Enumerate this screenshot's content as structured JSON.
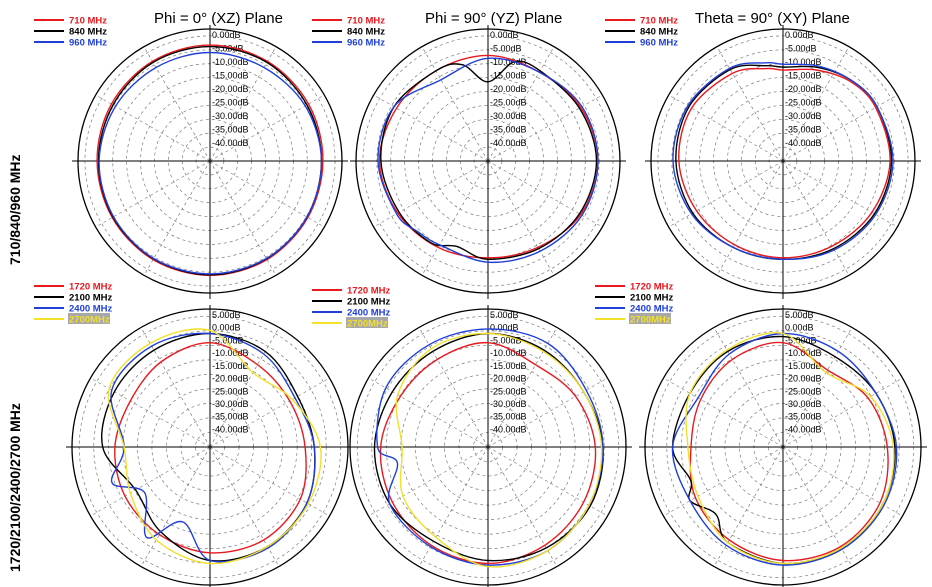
{
  "figure": {
    "column_titles": [
      "Phi = 0° (XZ)  Plane",
      "Phi = 90° (YZ)  Plane",
      "Theta = 90° (XY)  Plane"
    ],
    "row_labels": [
      "710/840/960  MHz",
      "1720/2100/2400/2700  MHz"
    ]
  },
  "ring_labels": [
    "0.00dB",
    "-5.00dB",
    "-10.00dB",
    "-15.00dB",
    "-20.00dB",
    "-25.00dB",
    "-30.00dB",
    "-35.00dB",
    "-40.00dB"
  ],
  "ring_labels_alt": [
    "5.00dB",
    "0.00dB",
    "-5.00dB",
    "-10.00dB",
    "-15.00dB",
    "-20.00dB",
    "-25.00dB",
    "-30.00dB",
    "-35.00dB",
    "-40.00dB"
  ],
  "colors": {
    "red": "#e8191f",
    "black": "#000000",
    "blue": "#1f3fd8",
    "yellow": "#f2e02a",
    "grid": "#7a7a7a"
  },
  "chart_data": [
    {
      "type": "polar",
      "plane": "Phi = 0° (XZ)  Plane",
      "radial_range_db": [
        -40,
        5
      ],
      "series": [
        {
          "name": "710 MHz",
          "color": "red",
          "angles_deg": [
            0,
            30,
            60,
            90,
            120,
            150,
            180,
            210,
            240,
            270,
            300,
            330
          ],
          "gain_db": [
            -0.5,
            -0.8,
            -1.2,
            -1.5,
            -1.5,
            -1.2,
            -1.0,
            -1.2,
            -1.5,
            -1.5,
            -1.2,
            -0.8
          ]
        },
        {
          "name": "840 MHz",
          "color": "black",
          "angles_deg": [
            0,
            30,
            60,
            90,
            120,
            150,
            180,
            210,
            240,
            270,
            300,
            330
          ],
          "gain_db": [
            -1.0,
            -1.2,
            -1.8,
            -2.0,
            -1.8,
            -1.5,
            -1.2,
            -1.5,
            -1.8,
            -2.0,
            -1.8,
            -1.2
          ]
        },
        {
          "name": "960 MHz",
          "color": "blue",
          "angles_deg": [
            0,
            30,
            60,
            90,
            120,
            150,
            180,
            210,
            240,
            270,
            300,
            330
          ],
          "gain_db": [
            -3.0,
            -3.2,
            -2.5,
            -2.0,
            -1.8,
            -1.6,
            -1.5,
            -1.6,
            -2.0,
            -2.2,
            -2.8,
            -3.2
          ]
        }
      ]
    },
    {
      "type": "polar",
      "plane": "Phi = 90° (YZ)  Plane",
      "radial_range_db": [
        -40,
        5
      ],
      "series": [
        {
          "name": "710 MHz",
          "color": "red",
          "angles_deg": [
            0,
            30,
            60,
            90,
            120,
            150,
            180,
            210,
            240,
            270,
            300,
            330
          ],
          "gain_db": [
            -4.0,
            -5.0,
            -3.5,
            -2.5,
            -3.5,
            -6.0,
            -7.0,
            -6.0,
            -4.5,
            -3.0,
            -4.0,
            -4.5
          ]
        },
        {
          "name": "840 MHz",
          "color": "black",
          "angles_deg": [
            0,
            15,
            30,
            60,
            90,
            120,
            150,
            180,
            200,
            215,
            240,
            270,
            300,
            330,
            345
          ],
          "gain_db": [
            -13.0,
            -5.0,
            -4.5,
            -4.0,
            -3.0,
            -4.0,
            -5.5,
            -6.5,
            -9.0,
            -6.0,
            -5.0,
            -3.5,
            -3.0,
            -4.5,
            -6.0
          ]
        },
        {
          "name": "960 MHz",
          "color": "blue",
          "angles_deg": [
            0,
            30,
            60,
            90,
            120,
            150,
            180,
            210,
            225,
            240,
            270,
            300,
            330
          ],
          "gain_db": [
            -5.0,
            -5.0,
            -3.0,
            -2.5,
            -3.0,
            -4.5,
            -5.5,
            -7.0,
            -6.0,
            -4.0,
            -2.5,
            -3.0,
            -8.0
          ]
        }
      ]
    },
    {
      "type": "polar",
      "plane": "Theta = 90° (XY)  Plane",
      "radial_range_db": [
        -40,
        5
      ],
      "series": [
        {
          "name": "710 MHz",
          "color": "red",
          "angles_deg": [
            0,
            20,
            40,
            60,
            90,
            120,
            150,
            180,
            210,
            240,
            270,
            300,
            330,
            350
          ],
          "gain_db": [
            -9.0,
            -7.0,
            -4.5,
            -3.5,
            -3.5,
            -5.0,
            -6.5,
            -7.0,
            -7.0,
            -6.0,
            -4.5,
            -4.0,
            -5.5,
            -8.0
          ]
        },
        {
          "name": "840 MHz",
          "color": "black",
          "angles_deg": [
            0,
            20,
            40,
            60,
            90,
            120,
            150,
            180,
            210,
            240,
            270,
            300,
            330,
            350
          ],
          "gain_db": [
            -8.0,
            -6.0,
            -4.0,
            -3.0,
            -3.0,
            -4.0,
            -5.5,
            -6.5,
            -6.0,
            -4.5,
            -3.5,
            -3.0,
            -4.0,
            -7.0
          ]
        },
        {
          "name": "960 MHz",
          "color": "blue",
          "angles_deg": [
            0,
            20,
            40,
            60,
            90,
            120,
            150,
            180,
            210,
            240,
            270,
            300,
            330,
            350
          ],
          "gain_db": [
            -7.0,
            -5.5,
            -4.0,
            -3.0,
            -2.5,
            -3.5,
            -5.0,
            -6.5,
            -6.0,
            -4.0,
            -2.5,
            -2.5,
            -3.5,
            -6.0
          ]
        }
      ]
    },
    {
      "type": "polar",
      "plane": "Phi = 0° (XZ)  Plane",
      "radial_range_db": [
        -40,
        5
      ],
      "series": [
        {
          "name": "1720 MHz",
          "color": "red",
          "angles_deg": [
            0,
            30,
            60,
            90,
            120,
            150,
            180,
            210,
            240,
            270,
            300,
            330
          ],
          "gain_db": [
            -6.0,
            -9.0,
            -10.0,
            -9.0,
            -6.0,
            -5.0,
            -5.5,
            -7.0,
            -8.0,
            -9.0,
            -10.0,
            -8.0
          ]
        },
        {
          "name": "2100 MHz",
          "color": "black",
          "angles_deg": [
            0,
            30,
            60,
            90,
            120,
            150,
            180,
            210,
            240,
            270,
            300,
            330
          ],
          "gain_db": [
            -3.0,
            -4.0,
            -7.0,
            -6.0,
            -3.5,
            -2.5,
            -3.0,
            -8.0,
            -12.0,
            -5.0,
            -4.0,
            -3.5
          ]
        },
        {
          "name": "2400 MHz",
          "color": "blue",
          "angles_deg": [
            0,
            30,
            60,
            90,
            120,
            150,
            180,
            200,
            215,
            235,
            250,
            270,
            300,
            330
          ],
          "gain_db": [
            -3.0,
            -5.0,
            -8.0,
            -6.0,
            -3.5,
            -2.0,
            -3.0,
            -14.0,
            -4.0,
            -14.0,
            -6.0,
            -12.0,
            -3.0,
            -2.0
          ]
        },
        {
          "name": "2700MHz",
          "color": "yellow",
          "angles_deg": [
            0,
            30,
            60,
            90,
            120,
            150,
            180,
            210,
            240,
            270,
            300,
            330
          ],
          "gain_db": [
            -2.0,
            -12.0,
            -9.0,
            -4.0,
            -3.0,
            -2.5,
            -2.0,
            -5.0,
            -10.0,
            -12.0,
            -2.0,
            -1.0
          ]
        }
      ]
    },
    {
      "type": "polar",
      "plane": "Phi = 90° (YZ)  Plane",
      "radial_range_db": [
        -40,
        5
      ],
      "series": [
        {
          "name": "1720 MHz",
          "color": "red",
          "angles_deg": [
            0,
            30,
            60,
            90,
            120,
            150,
            180,
            210,
            240,
            270,
            300,
            330
          ],
          "gain_db": [
            -6.0,
            -9.0,
            -7.0,
            -5.0,
            -4.0,
            -3.0,
            -2.0,
            -3.0,
            -4.0,
            -5.0,
            -7.0,
            -7.0
          ]
        },
        {
          "name": "2100 MHz",
          "color": "black",
          "angles_deg": [
            0,
            30,
            60,
            90,
            120,
            150,
            180,
            210,
            240,
            270,
            300,
            330
          ],
          "gain_db": [
            -3.0,
            -3.5,
            -4.0,
            -2.5,
            -1.5,
            -2.0,
            -3.0,
            -4.5,
            -3.0,
            -3.0,
            -4.0,
            -4.0
          ]
        },
        {
          "name": "2400 MHz",
          "color": "blue",
          "angles_deg": [
            0,
            30,
            60,
            90,
            120,
            150,
            180,
            210,
            240,
            260,
            270,
            300,
            330
          ],
          "gain_db": [
            -1.5,
            -1.0,
            -3.0,
            -2.5,
            -2.0,
            -1.0,
            -1.5,
            -2.5,
            -3.0,
            -10.0,
            -4.0,
            -1.5,
            -1.5
          ]
        },
        {
          "name": "2700MHz",
          "color": "yellow",
          "angles_deg": [
            0,
            30,
            60,
            90,
            120,
            150,
            180,
            210,
            240,
            270,
            300,
            330
          ],
          "gain_db": [
            -3.0,
            -4.0,
            -4.0,
            -3.0,
            -2.0,
            -1.0,
            -1.0,
            -6.0,
            -8.0,
            -12.0,
            -6.0,
            -3.0
          ]
        }
      ]
    },
    {
      "type": "polar",
      "plane": "Theta = 90° (XY)  Plane",
      "radial_range_db": [
        -40,
        5
      ],
      "series": [
        {
          "name": "1720 MHz",
          "color": "red",
          "angles_deg": [
            0,
            30,
            60,
            90,
            120,
            150,
            180,
            210,
            240,
            270,
            300,
            330
          ],
          "gain_db": [
            -6.0,
            -11.0,
            -8.0,
            -6.0,
            -3.5,
            -2.5,
            -3.0,
            -5.0,
            -7.0,
            -10.0,
            -9.0,
            -7.0
          ]
        },
        {
          "name": "2100 MHz",
          "color": "black",
          "angles_deg": [
            0,
            30,
            60,
            90,
            120,
            150,
            180,
            210,
            225,
            240,
            250,
            270,
            300,
            330
          ],
          "gain_db": [
            -4.0,
            -6.0,
            -5.0,
            -3.5,
            -2.5,
            -1.5,
            -2.0,
            -4.0,
            -9.0,
            -5.0,
            -8.0,
            -4.0,
            -5.0,
            -4.0
          ]
        },
        {
          "name": "2400 MHz",
          "color": "blue",
          "angles_deg": [
            0,
            30,
            60,
            90,
            120,
            150,
            180,
            210,
            240,
            270,
            300,
            330
          ],
          "gain_db": [
            -3.0,
            -4.0,
            -5.0,
            -3.0,
            -2.0,
            -1.5,
            -1.5,
            -3.0,
            -5.0,
            -4.0,
            -8.0,
            -5.0
          ]
        },
        {
          "name": "2700MHz",
          "color": "yellow",
          "angles_deg": [
            0,
            30,
            60,
            90,
            120,
            150,
            180,
            210,
            240,
            270,
            300,
            330
          ],
          "gain_db": [
            -3.0,
            -12.0,
            -7.0,
            -4.0,
            -2.5,
            -2.0,
            -2.0,
            -4.0,
            -8.0,
            -9.0,
            -5.0,
            -3.5
          ]
        }
      ]
    }
  ]
}
